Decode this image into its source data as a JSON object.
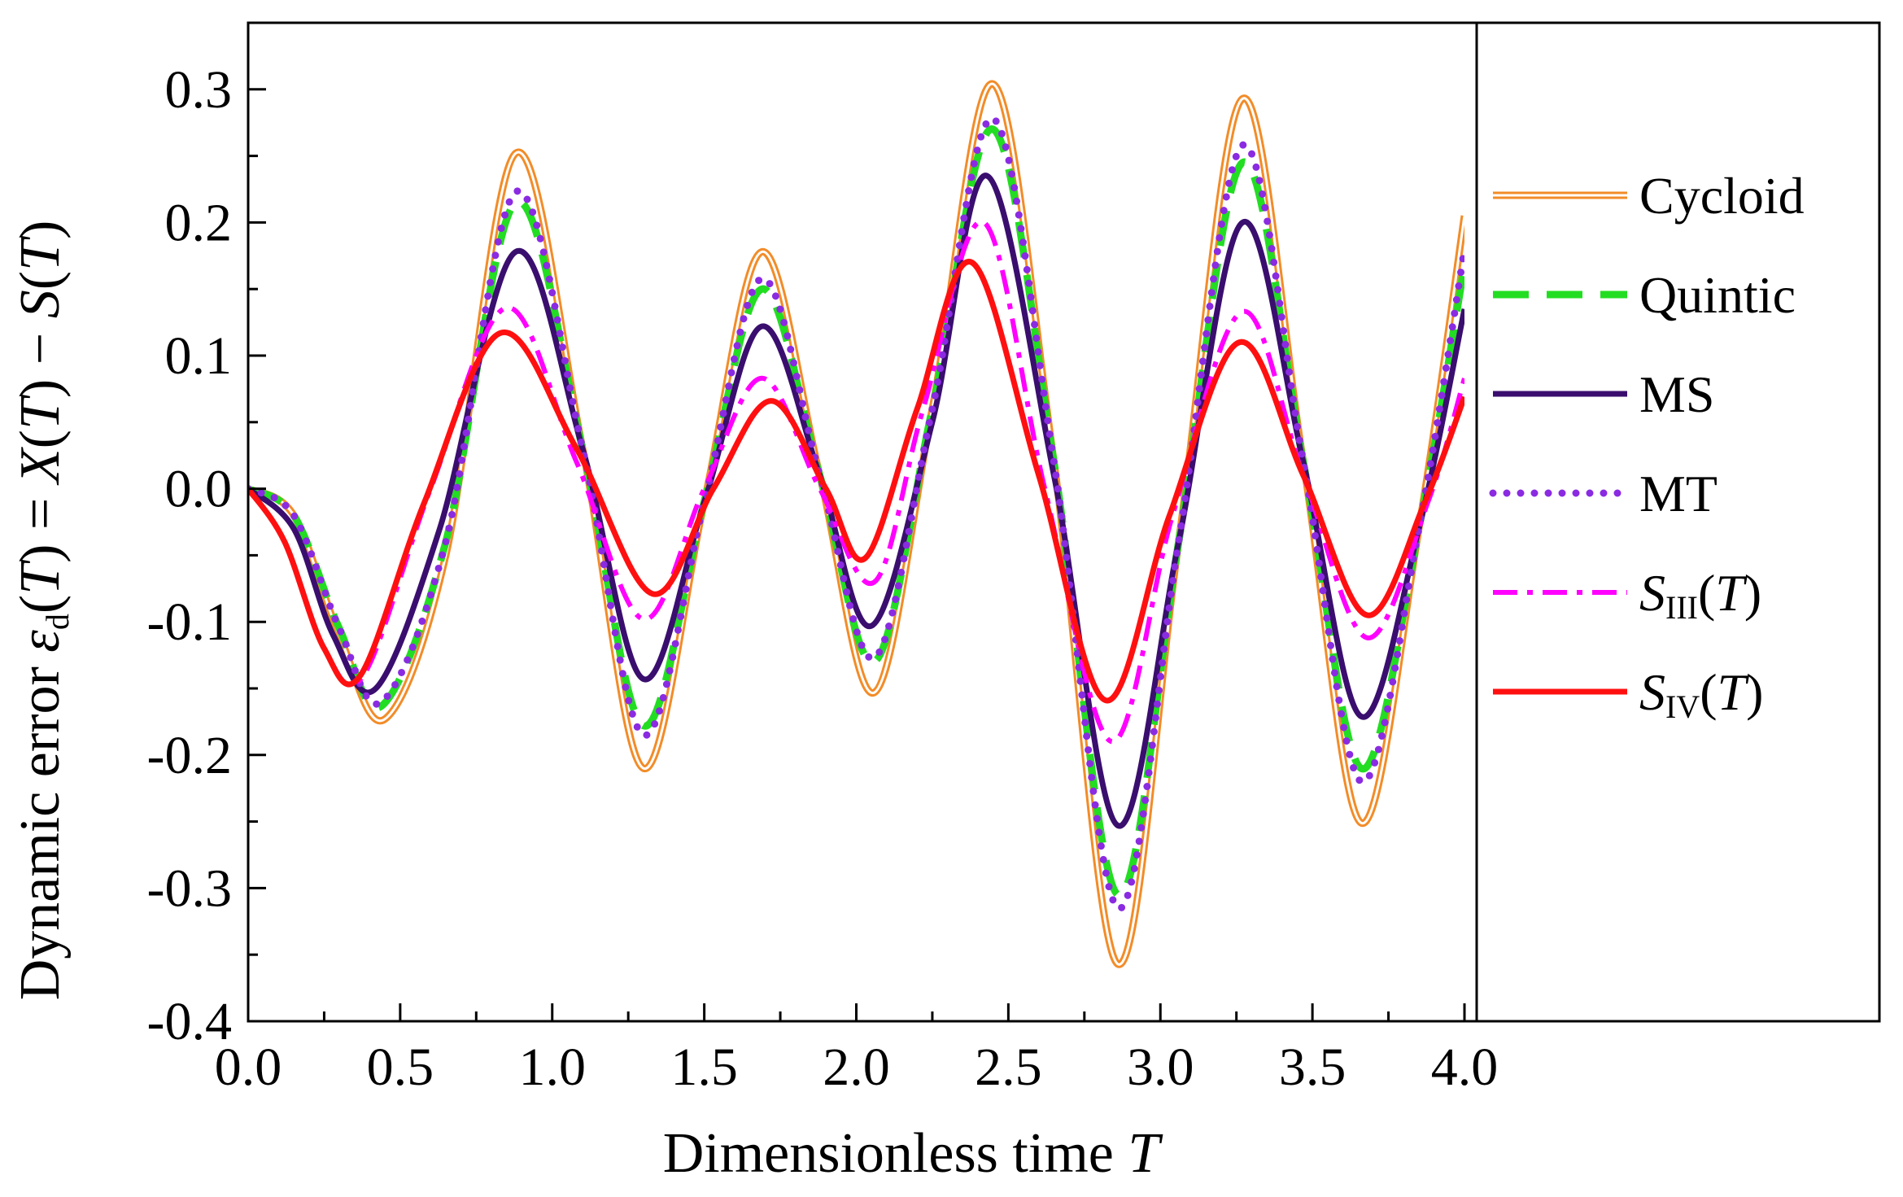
{
  "chart_data": {
    "type": "line",
    "xlabel": "Dimensionless time",
    "xlabel_var": "T",
    "ylabel": {
      "prefix": "Dynamic error ",
      "eps": "ε",
      "eps_sub": "d",
      "paren_open": "(",
      "T": "T",
      "eq_part": ") = ",
      "X": "X",
      "minus_part": ") − ",
      "S": "S",
      "paren_close": ")"
    },
    "xlim": [
      0,
      4
    ],
    "ylim": [
      -0.4,
      0.35
    ],
    "xticks": [
      0.0,
      0.5,
      1.0,
      1.5,
      2.0,
      2.5,
      3.0,
      3.5,
      4.0
    ],
    "xtick_labels": [
      "0.0",
      "0.5",
      "1.0",
      "1.5",
      "2.0",
      "2.5",
      "3.0",
      "3.5",
      "4.0"
    ],
    "yticks": [
      -0.4,
      -0.3,
      -0.2,
      -0.1,
      0.0,
      0.1,
      0.2,
      0.3
    ],
    "ytick_labels": [
      "-0.4",
      "-0.3",
      "-0.2",
      "-0.1",
      "0.0",
      "0.1",
      "0.2",
      "0.3"
    ],
    "legend_position": "right",
    "series": [
      {
        "name": "Cycloid",
        "legend": {
          "main": "Cycloid"
        },
        "color": "#F28C28",
        "style": "double",
        "x": [
          0,
          0.15,
          0.3,
          0.45,
          0.65,
          0.88,
          1.1,
          1.3,
          1.5,
          1.69,
          1.88,
          2.06,
          2.25,
          2.45,
          2.65,
          2.86,
          3.06,
          3.27,
          3.47,
          3.66,
          3.85,
          4.0
        ],
        "y": [
          0,
          -0.02,
          -0.11,
          -0.173,
          -0.05,
          0.252,
          0.03,
          -0.21,
          -0.01,
          0.178,
          0.01,
          -0.153,
          0.06,
          0.304,
          0.02,
          -0.357,
          -0.04,
          0.293,
          0.02,
          -0.251,
          -0.03,
          0.205
        ]
      },
      {
        "name": "Quintic",
        "legend": {
          "main": "Quintic"
        },
        "color": "#22DD22",
        "style": "dash",
        "x": [
          0,
          0.15,
          0.3,
          0.44,
          0.65,
          0.88,
          1.1,
          1.3,
          1.5,
          1.69,
          1.88,
          2.06,
          2.25,
          2.45,
          2.65,
          2.86,
          3.06,
          3.27,
          3.47,
          3.66,
          3.85,
          4.0
        ],
        "y": [
          0,
          -0.02,
          -0.105,
          -0.163,
          -0.04,
          0.215,
          0.03,
          -0.178,
          -0.01,
          0.15,
          0.01,
          -0.13,
          0.06,
          0.27,
          0.02,
          -0.305,
          -0.04,
          0.245,
          0.02,
          -0.21,
          -0.03,
          0.168
        ]
      },
      {
        "name": "MS",
        "legend": {
          "main": "MS"
        },
        "color": "#3A0E6E",
        "style": "solid",
        "x": [
          0,
          0.15,
          0.28,
          0.42,
          0.63,
          0.88,
          1.1,
          1.3,
          1.5,
          1.69,
          1.88,
          2.05,
          2.25,
          2.43,
          2.65,
          2.86,
          3.06,
          3.27,
          3.47,
          3.66,
          3.85,
          4.0
        ],
        "y": [
          0,
          -0.03,
          -0.11,
          -0.15,
          -0.03,
          0.178,
          0.03,
          -0.143,
          -0.01,
          0.122,
          0.01,
          -0.103,
          0.05,
          0.235,
          0.01,
          -0.253,
          -0.04,
          0.2,
          0.02,
          -0.171,
          -0.03,
          0.135
        ]
      },
      {
        "name": "MT",
        "legend": {
          "main": "MT"
        },
        "color": "#8A2BE2",
        "style": "dot",
        "x": [
          0,
          0.15,
          0.3,
          0.44,
          0.65,
          0.88,
          1.1,
          1.3,
          1.5,
          1.69,
          1.88,
          2.06,
          2.25,
          2.45,
          2.65,
          2.86,
          3.06,
          3.27,
          3.47,
          3.66,
          3.85,
          4.0
        ],
        "y": [
          0,
          -0.02,
          -0.105,
          -0.16,
          -0.04,
          0.223,
          0.03,
          -0.185,
          -0.01,
          0.158,
          0.01,
          -0.127,
          0.06,
          0.278,
          0.02,
          -0.315,
          -0.04,
          0.258,
          0.02,
          -0.22,
          -0.03,
          0.18
        ]
      },
      {
        "name": "SIII(T)",
        "legend": {
          "main": "S",
          "sub": "III",
          "paren_open": "(",
          "var": "T",
          "paren_close": ")"
        },
        "color": "#FF00FF",
        "style": "dashdot",
        "x": [
          0,
          0.12,
          0.25,
          0.38,
          0.6,
          0.85,
          1.08,
          1.3,
          1.5,
          1.69,
          1.88,
          2.06,
          2.22,
          2.42,
          2.62,
          2.84,
          3.04,
          3.27,
          3.47,
          3.68,
          3.88,
          4.0
        ],
        "y": [
          0,
          -0.04,
          -0.12,
          -0.14,
          0.0,
          0.136,
          0.02,
          -0.098,
          0.0,
          0.083,
          0.0,
          -0.07,
          0.06,
          0.2,
          0.0,
          -0.19,
          -0.02,
          0.133,
          0.01,
          -0.112,
          -0.01,
          0.083
        ]
      },
      {
        "name": "SIV(T)",
        "legend": {
          "main": "S",
          "sub": "IV",
          "paren_open": "(",
          "var": "T",
          "paren_close": ")"
        },
        "color": "#FF1010",
        "style": "solid",
        "x": [
          0,
          0.12,
          0.25,
          0.37,
          0.58,
          0.83,
          1.08,
          1.33,
          1.53,
          1.72,
          1.9,
          2.03,
          2.2,
          2.38,
          2.6,
          2.82,
          3.03,
          3.26,
          3.47,
          3.68,
          3.87,
          4.0
        ],
        "y": [
          0,
          -0.04,
          -0.12,
          -0.14,
          -0.01,
          0.117,
          0.03,
          -0.079,
          0.0,
          0.066,
          0.0,
          -0.052,
          0.06,
          0.17,
          0.01,
          -0.159,
          -0.02,
          0.11,
          0.01,
          -0.095,
          -0.01,
          0.069
        ]
      }
    ]
  }
}
